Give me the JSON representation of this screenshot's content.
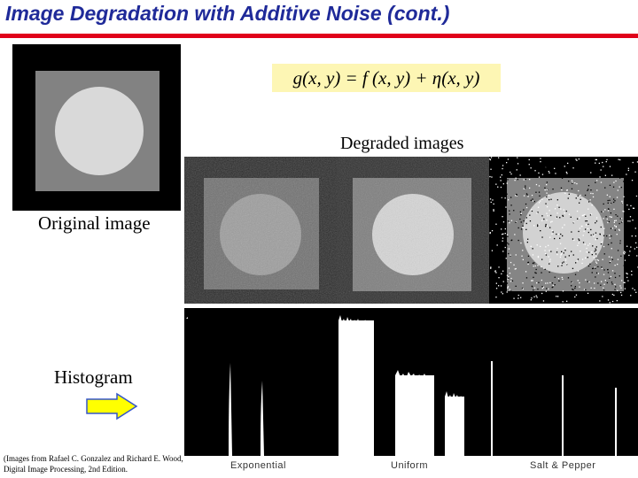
{
  "slide": {
    "title": "Image Degradation with Additive Noise (cont.)",
    "equation": "g(x, y) = f (x, y) + η(x, y)",
    "original_caption": "Original image",
    "degraded_caption": "Degraded images",
    "histogram_caption": "Histogram",
    "credit": "(Images from Rafael C. Gonzalez and Richard E. Wood, Digital Image Processing, 2nd Edition.",
    "histogram_labels": [
      "Exponential",
      "Uniform",
      "Salt & Pepper"
    ]
  },
  "colors": {
    "title": "#1f2a99",
    "rule": "#e0001a",
    "equation_bg": "#fdf6b4",
    "arrow_fill": "#ffff00",
    "arrow_stroke": "#3355cc"
  }
}
